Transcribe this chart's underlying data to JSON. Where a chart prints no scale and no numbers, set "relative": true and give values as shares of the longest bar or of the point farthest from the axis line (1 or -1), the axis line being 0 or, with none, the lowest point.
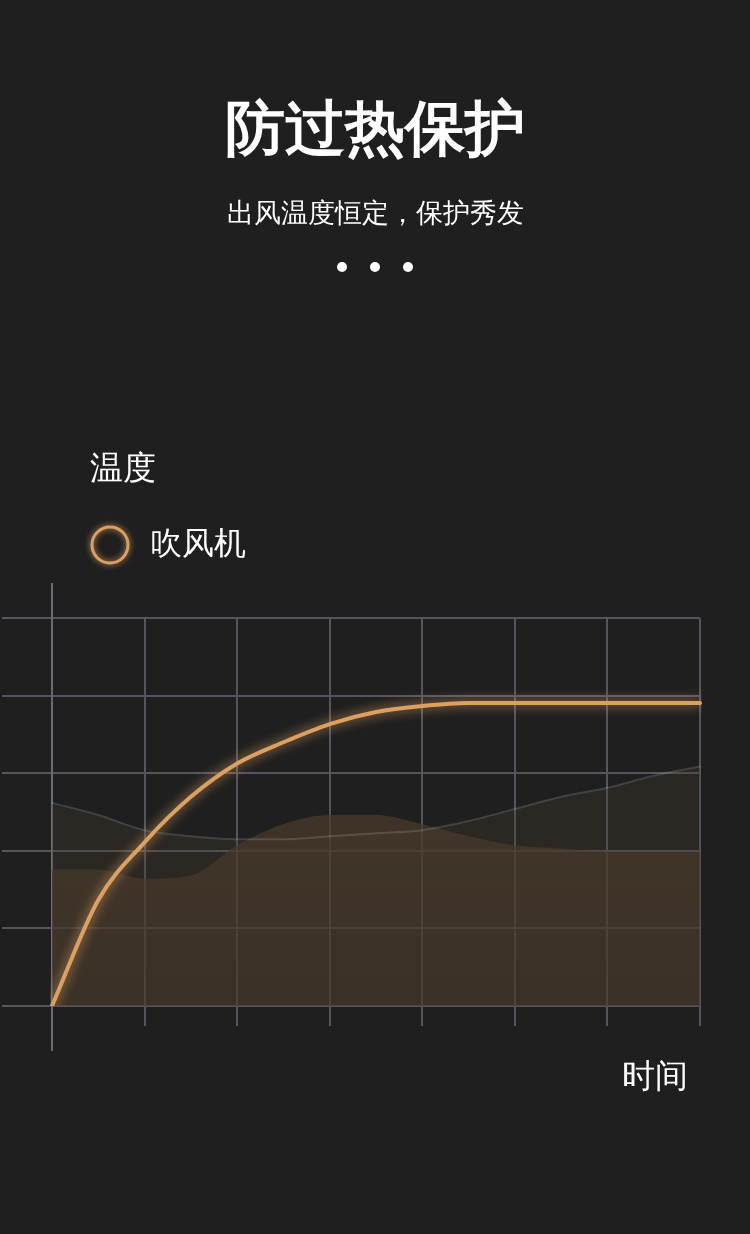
{
  "chart_data": {
    "type": "area",
    "title": "防过热保护",
    "subtitle": "出风温度恒定，保护秀发",
    "xlabel": "时间",
    "annotations": [
      "温度"
    ],
    "relative": true,
    "grid": true,
    "legend": "top left",
    "categories": [
      null,
      null,
      null,
      null,
      null,
      null,
      null,
      null,
      null,
      null,
      null,
      null,
      null,
      null,
      null
    ],
    "series": [
      {
        "color": "#2c2824",
        "values": [
          0.67,
          0.63,
          0.58,
          0.56,
          0.55,
          0.55,
          0.56,
          0.57,
          0.58,
          0.61,
          0.65,
          0.69,
          0.72,
          0.76,
          0.79
        ]
      },
      {
        "color": "#4a3a2a",
        "values": [
          0.45,
          0.45,
          0.42,
          0.43,
          0.53,
          0.6,
          0.63,
          0.63,
          0.6,
          0.56,
          0.53,
          0.52,
          0.51,
          0.51,
          0.51
        ]
      },
      {
        "type": "line",
        "name": "吹风机",
        "color": "#dca060",
        "values": [
          0,
          0.35,
          0.54,
          0.69,
          0.8,
          0.87,
          0.93,
          0.97,
          0.99,
          1,
          1,
          1,
          1,
          1,
          1
        ]
      }
    ]
  }
}
